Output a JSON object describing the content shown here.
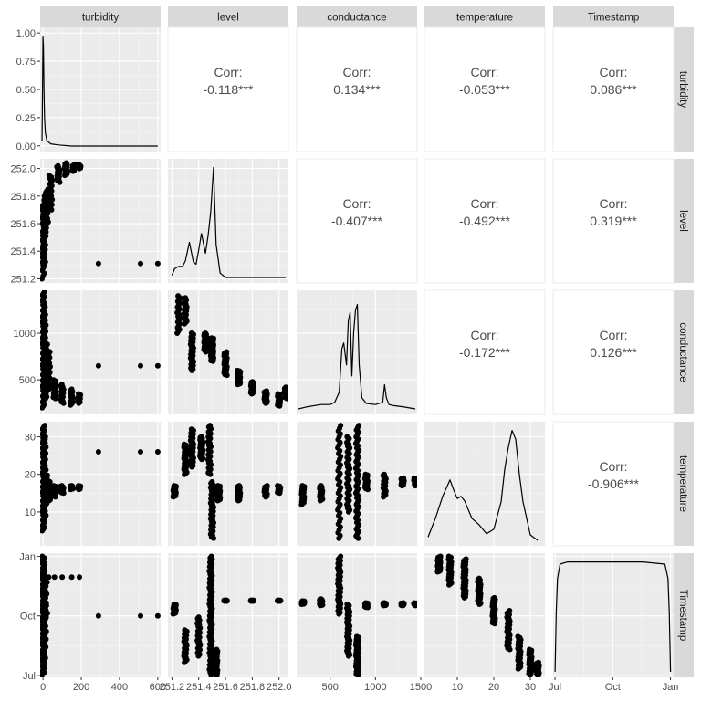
{
  "chart_data": {
    "type": "scatter-matrix",
    "variables": [
      "turbidity",
      "level",
      "conductance",
      "temperature",
      "Timestamp"
    ],
    "axes": {
      "turbidity": {
        "lim": [
          -15,
          615
        ],
        "ticks": [
          0,
          200,
          400,
          600
        ],
        "tick_labels": [
          "0",
          "200",
          "400",
          "600"
        ]
      },
      "level": {
        "lim": [
          251.17,
          252.07
        ],
        "ticks": [
          251.2,
          251.4,
          251.6,
          251.8,
          252.0
        ],
        "tick_labels": [
          "251.2",
          "251.4",
          "251.6",
          "251.8",
          "252.0"
        ]
      },
      "conductance": {
        "lim": [
          130,
          1460
        ],
        "ticks": [
          500,
          1000,
          1500
        ],
        "tick_labels": [
          "500",
          "1000",
          "1500"
        ]
      },
      "temperature": {
        "lim": [
          1,
          34
        ],
        "ticks": [
          10,
          20,
          30
        ],
        "tick_labels": [
          "10",
          "20",
          "30"
        ]
      },
      "Timestamp": {
        "lim": [
          -3,
          189
        ],
        "ticks": [
          0,
          92,
          184
        ],
        "tick_labels": [
          "Jul",
          "Oct",
          "Jan"
        ]
      }
    },
    "y_axes": {
      "turbidity": {
        "lim": [
          -0.05,
          1.05
        ],
        "ticks": [
          0,
          0.25,
          0.5,
          0.75,
          1.0
        ],
        "tick_labels": [
          "0.00",
          "0.25",
          "0.50",
          "0.75",
          "1.00"
        ]
      },
      "level": {
        "lim": [
          251.17,
          252.07
        ],
        "ticks": [
          251.2,
          251.4,
          251.6,
          251.8,
          252.0
        ],
        "tick_labels": [
          "251.2",
          "251.4",
          "251.6",
          "251.8",
          "252.0"
        ]
      },
      "conductance": {
        "lim": [
          130,
          1460
        ],
        "ticks": [
          500,
          1000,
          1500
        ],
        "tick_labels": [
          "500",
          "1000",
          "1500"
        ]
      },
      "temperature": {
        "lim": [
          1,
          34
        ],
        "ticks": [
          10,
          20,
          30
        ],
        "tick_labels": [
          "10",
          "20",
          "30"
        ]
      },
      "Timestamp": {
        "lim": [
          -3,
          189
        ],
        "ticks": [
          0,
          92,
          184
        ],
        "tick_labels": [
          "Jul",
          "Oct",
          "Jan"
        ]
      }
    },
    "correlations": [
      {
        "row": "turbidity",
        "col": "level",
        "label": "Corr:",
        "value": "-0.118***"
      },
      {
        "row": "turbidity",
        "col": "conductance",
        "label": "Corr:",
        "value": "0.134***"
      },
      {
        "row": "turbidity",
        "col": "temperature",
        "label": "Corr:",
        "value": "-0.053***"
      },
      {
        "row": "turbidity",
        "col": "Timestamp",
        "label": "Corr:",
        "value": "0.086***"
      },
      {
        "row": "level",
        "col": "conductance",
        "label": "Corr:",
        "value": "-0.407***"
      },
      {
        "row": "level",
        "col": "temperature",
        "label": "Corr:",
        "value": "-0.492***"
      },
      {
        "row": "level",
        "col": "Timestamp",
        "label": "Corr:",
        "value": "0.319***"
      },
      {
        "row": "conductance",
        "col": "temperature",
        "label": "Corr:",
        "value": "-0.172***"
      },
      {
        "row": "conductance",
        "col": "Timestamp",
        "label": "Corr:",
        "value": "0.126***"
      },
      {
        "row": "temperature",
        "col": "Timestamp",
        "label": "Corr:",
        "value": "-0.906***"
      }
    ],
    "densities": {
      "turbidity": {
        "x": [
          -5,
          0,
          2,
          5,
          8,
          12,
          20,
          40,
          80,
          150,
          300,
          600
        ],
        "y": [
          0.05,
          1.0,
          0.9,
          0.5,
          0.25,
          0.12,
          0.05,
          0.02,
          0.01,
          0.0,
          0.0,
          0.0
        ]
      },
      "level": {
        "x": [
          251.2,
          251.22,
          251.25,
          251.28,
          251.3,
          251.33,
          251.36,
          251.38,
          251.4,
          251.42,
          251.45,
          251.47,
          251.49,
          251.51,
          251.53,
          251.56,
          251.6,
          251.8,
          252.05
        ],
        "y": [
          0.02,
          0.08,
          0.1,
          0.1,
          0.15,
          0.32,
          0.14,
          0.12,
          0.25,
          0.4,
          0.22,
          0.38,
          0.6,
          1.0,
          0.3,
          0.04,
          0.0,
          0.0,
          0.0
        ]
      },
      "conductance": {
        "x": [
          150,
          250,
          400,
          500,
          550,
          600,
          630,
          650,
          680,
          700,
          720,
          740,
          760,
          780,
          800,
          820,
          850,
          900,
          1000,
          1080,
          1100,
          1120,
          1150,
          1200,
          1300,
          1440
        ],
        "y": [
          0.0,
          0.02,
          0.04,
          0.04,
          0.06,
          0.15,
          0.55,
          0.6,
          0.4,
          0.8,
          0.88,
          0.3,
          0.7,
          0.9,
          0.95,
          0.4,
          0.1,
          0.05,
          0.04,
          0.06,
          0.22,
          0.1,
          0.04,
          0.03,
          0.02,
          0.0
        ]
      },
      "temperature": {
        "x": [
          2,
          4,
          6,
          8,
          9,
          10,
          11,
          12,
          14,
          16,
          18,
          20,
          22,
          23,
          24,
          25,
          26,
          27,
          28,
          30,
          32
        ],
        "y": [
          0.03,
          0.2,
          0.4,
          0.55,
          0.46,
          0.38,
          0.4,
          0.36,
          0.2,
          0.14,
          0.06,
          0.1,
          0.35,
          0.65,
          0.85,
          1.0,
          0.92,
          0.6,
          0.35,
          0.05,
          0.0
        ]
      },
      "Timestamp": {
        "x": [
          0,
          2,
          4,
          8,
          20,
          60,
          100,
          140,
          175,
          180,
          182,
          184
        ],
        "y": [
          0.0,
          0.55,
          0.85,
          0.98,
          1.0,
          1.0,
          1.0,
          1.0,
          0.98,
          0.85,
          0.55,
          0.0
        ]
      }
    },
    "scatter_paths": {
      "level|turbidity": [
        [
          2,
          251.2,
          251.7,
          25
        ],
        [
          5,
          251.3,
          251.75,
          40
        ],
        [
          10,
          251.5,
          251.8,
          30
        ],
        [
          20,
          251.6,
          251.85,
          20
        ],
        [
          40,
          251.7,
          251.95,
          20
        ],
        [
          80,
          251.9,
          252.02,
          15
        ],
        [
          120,
          251.95,
          252.04,
          15
        ],
        [
          160,
          251.98,
          252.03,
          10
        ],
        [
          190,
          252.0,
          252.03,
          8
        ]
      ],
      "conductance|turbidity": [
        [
          3,
          200,
          1450,
          60
        ],
        [
          8,
          300,
          1200,
          40
        ],
        [
          15,
          300,
          900,
          30
        ],
        [
          30,
          400,
          800,
          20
        ],
        [
          60,
          300,
          500,
          15
        ],
        [
          100,
          250,
          450,
          15
        ],
        [
          150,
          230,
          400,
          12
        ],
        [
          190,
          250,
          350,
          8
        ]
      ],
      "temperature|turbidity": [
        [
          3,
          5,
          33,
          60
        ],
        [
          8,
          8,
          30,
          40
        ],
        [
          15,
          12,
          20,
          30
        ],
        [
          30,
          13,
          18,
          20
        ],
        [
          60,
          14,
          17,
          15
        ],
        [
          100,
          15,
          17,
          15
        ],
        [
          150,
          16,
          17,
          12
        ],
        [
          190,
          16,
          17,
          8
        ]
      ],
      "Timestamp|turbidity": [
        [
          2,
          0,
          184,
          80
        ],
        [
          5,
          20,
          160,
          40
        ],
        [
          10,
          40,
          120,
          20
        ],
        [
          15,
          90,
          150,
          10
        ]
      ],
      "conductance|level": [
        [
          251.25,
          1000,
          1400,
          20
        ],
        [
          251.3,
          1100,
          1380,
          20
        ],
        [
          251.35,
          600,
          1000,
          30
        ],
        [
          251.45,
          800,
          1000,
          30
        ],
        [
          251.5,
          700,
          950,
          40
        ],
        [
          251.6,
          550,
          800,
          30
        ],
        [
          251.7,
          450,
          600,
          30
        ],
        [
          251.8,
          350,
          480,
          20
        ],
        [
          251.9,
          250,
          380,
          20
        ],
        [
          252.0,
          220,
          350,
          15
        ],
        [
          252.05,
          300,
          420,
          10
        ]
      ],
      "temperature|level": [
        [
          251.22,
          14,
          17,
          20
        ],
        [
          251.3,
          20,
          28,
          30
        ],
        [
          251.35,
          22,
          32,
          30
        ],
        [
          251.42,
          24,
          30,
          30
        ],
        [
          251.48,
          20,
          33,
          30
        ],
        [
          251.5,
          3,
          18,
          40
        ],
        [
          251.55,
          13,
          17,
          25
        ],
        [
          251.7,
          13,
          17,
          20
        ],
        [
          251.9,
          14,
          17,
          15
        ],
        [
          252.0,
          15,
          17,
          12
        ]
      ],
      "Timestamp|level": [
        [
          251.22,
          95,
          110,
          20
        ],
        [
          251.3,
          20,
          70,
          25
        ],
        [
          251.4,
          30,
          90,
          25
        ],
        [
          251.49,
          0,
          184,
          80
        ],
        [
          251.53,
          0,
          40,
          30
        ],
        [
          251.6,
          115,
          116,
          30
        ],
        [
          251.8,
          115,
          116,
          30
        ],
        [
          252.0,
          115,
          116,
          30
        ]
      ],
      "temperature|conductance": [
        [
          200,
          12,
          17,
          20
        ],
        [
          400,
          13,
          17,
          20
        ],
        [
          600,
          3,
          33,
          40
        ],
        [
          700,
          10,
          30,
          40
        ],
        [
          800,
          3,
          33,
          50
        ],
        [
          900,
          16,
          20,
          20
        ],
        [
          1100,
          14,
          20,
          20
        ],
        [
          1300,
          17,
          19,
          15
        ],
        [
          1440,
          17,
          19,
          10
        ]
      ],
      "Timestamp|conductance": [
        [
          200,
          110,
          115,
          20
        ],
        [
          400,
          108,
          118,
          20
        ],
        [
          600,
          95,
          184,
          40
        ],
        [
          700,
          30,
          110,
          40
        ],
        [
          800,
          0,
          60,
          40
        ],
        [
          900,
          105,
          112,
          20
        ],
        [
          1100,
          108,
          112,
          20
        ],
        [
          1300,
          108,
          112,
          15
        ],
        [
          1440,
          108,
          112,
          10
        ]
      ],
      "Timestamp|temperature": [
        [
          5,
          160,
          184,
          30
        ],
        [
          8,
          140,
          184,
          30
        ],
        [
          12,
          120,
          180,
          40
        ],
        [
          16,
          110,
          150,
          30
        ],
        [
          20,
          80,
          120,
          30
        ],
        [
          24,
          40,
          100,
          30
        ],
        [
          27,
          10,
          60,
          30
        ],
        [
          30,
          0,
          40,
          30
        ],
        [
          32,
          0,
          20,
          20
        ]
      ]
    },
    "scatter_points": {
      "level|turbidity": [
        [
          290,
          251.31
        ],
        [
          510,
          251.31
        ],
        [
          600,
          251.31
        ]
      ],
      "conductance|turbidity": [
        [
          290,
          650
        ],
        [
          510,
          650
        ],
        [
          600,
          650
        ]
      ],
      "temperature|turbidity": [
        [
          290,
          26
        ],
        [
          510,
          26
        ],
        [
          600,
          26
        ]
      ],
      "Timestamp|turbidity": [
        [
          290,
          92
        ],
        [
          510,
          92
        ],
        [
          600,
          92
        ],
        [
          30,
          152
        ],
        [
          60,
          152
        ],
        [
          100,
          152
        ],
        [
          150,
          152
        ],
        [
          190,
          152
        ]
      ]
    }
  }
}
